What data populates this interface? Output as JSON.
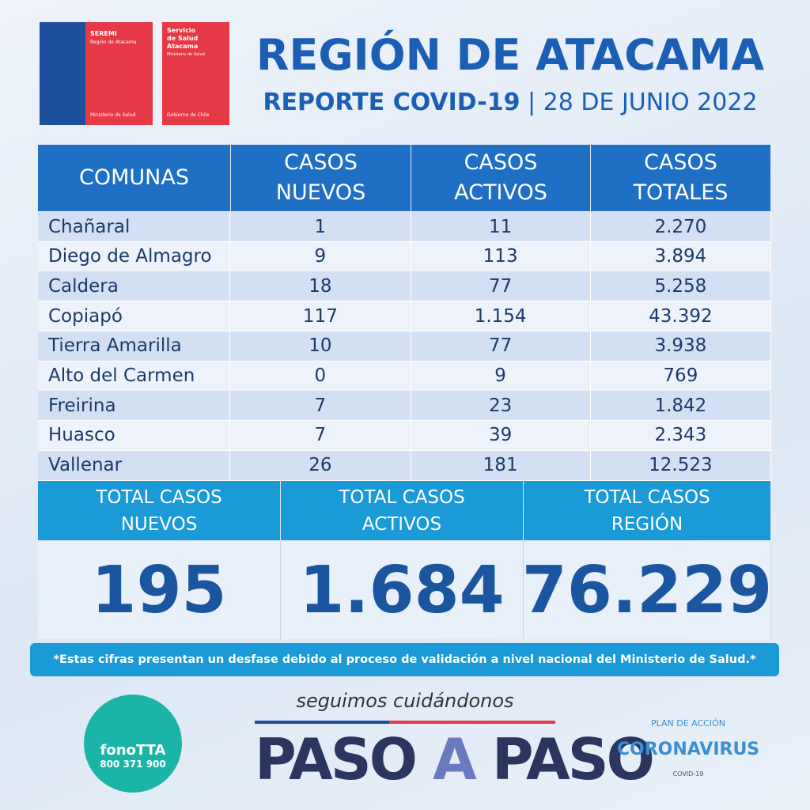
{
  "logos": {
    "seremi": {
      "name": "SEREMI",
      "region": "Región de Atacama",
      "ministry": "Ministerio de Salud"
    },
    "servicio": {
      "lines": [
        "Servicio",
        "de Salud",
        "Atacama"
      ],
      "ministry": "Ministerio de Salud",
      "government": "Gobierno de Chile"
    }
  },
  "header": {
    "title": "REGIÓN DE ATACAMA",
    "subtitle": "REPORTE COVID-19",
    "date": "28 DE JUNIO 2022"
  },
  "table": {
    "columns": [
      [
        "COMUNAS"
      ],
      [
        "CASOS",
        "NUEVOS"
      ],
      [
        "CASOS",
        "ACTIVOS"
      ],
      [
        "CASOS",
        "TOTALES"
      ]
    ],
    "rows": [
      [
        "Chañaral",
        "1",
        "11",
        "2.270"
      ],
      [
        "Diego de Almagro",
        "9",
        "113",
        "3.894"
      ],
      [
        "Caldera",
        "18",
        "77",
        "5.258"
      ],
      [
        "Copiapó",
        "117",
        "1.154",
        "43.392"
      ],
      [
        "Tierra Amarilla",
        "10",
        "77",
        "3.938"
      ],
      [
        "Alto del Carmen",
        "0",
        "9",
        "769"
      ],
      [
        "Freirina",
        "7",
        "23",
        "1.842"
      ],
      [
        "Huasco",
        "7",
        "39",
        "2.343"
      ],
      [
        "Vallenar",
        "26",
        "181",
        "12.523"
      ]
    ]
  },
  "totals": [
    {
      "label": [
        "TOTAL CASOS",
        "NUEVOS"
      ],
      "value": "195"
    },
    {
      "label": [
        "TOTAL CASOS",
        "ACTIVOS"
      ],
      "value": "1.684"
    },
    {
      "label": [
        "TOTAL CASOS",
        "REGIÓN"
      ],
      "value": "76.229"
    }
  ],
  "note": "*Estas cifras presentan un desfase debido al proceso de validación a nivel nacional del Ministerio de Salud.*",
  "footer": {
    "fono": {
      "name": "fonoTTA",
      "phone": "800 371 900"
    },
    "slogan": "seguimos cuidándonos",
    "campaign": [
      "PASO",
      "A",
      "PASO"
    ],
    "plan": {
      "top": "PLAN DE ACCIÓN",
      "main": "CORONAVIRUS",
      "bottom": "COVID-19"
    }
  }
}
